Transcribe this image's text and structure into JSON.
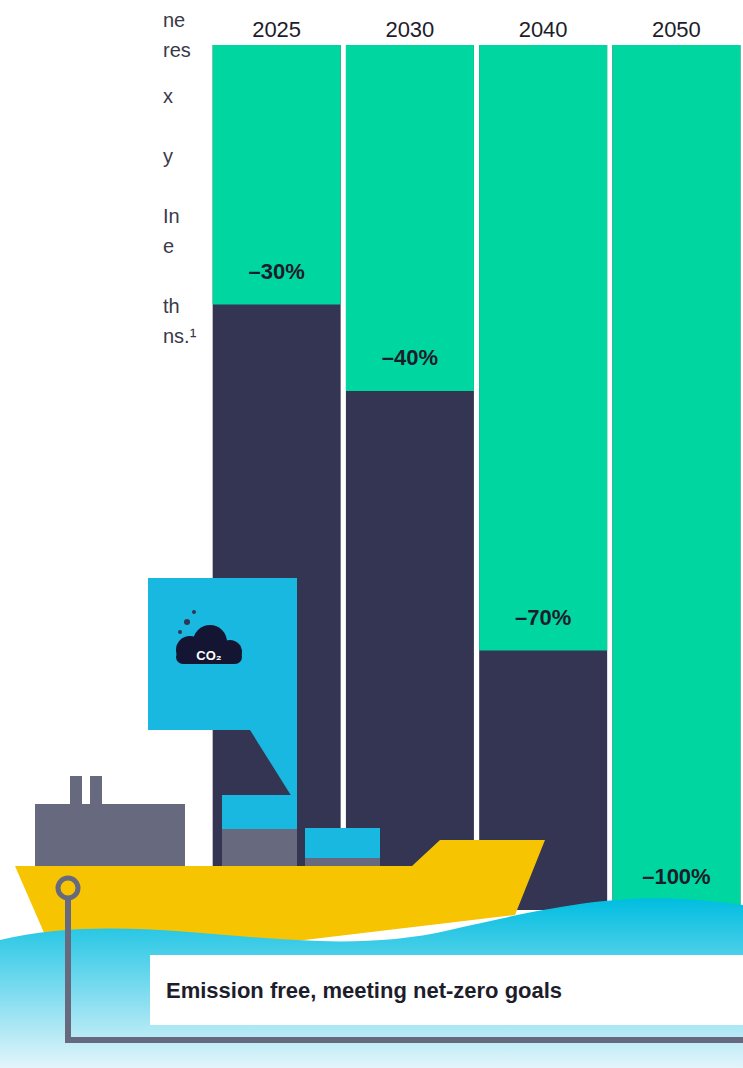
{
  "chart_data": {
    "type": "bar",
    "categories": [
      "2025",
      "2030",
      "2040",
      "2050"
    ],
    "values": [
      -30,
      -40,
      -70,
      -100
    ],
    "value_labels": [
      "–30%",
      "–40%",
      "–70%",
      "–100%"
    ],
    "data_labels": true,
    "color": "#00d7a0",
    "ylim": [
      -100,
      0
    ],
    "tick_labels": "x"
  },
  "annotations": {
    "icon_label": "CO₂",
    "caption": "Emission free, meeting net-zero goals",
    "text_fragments": [
      "ne",
      "res",
      "x",
      "y",
      "In",
      "e",
      "th",
      "ns.¹"
    ]
  }
}
